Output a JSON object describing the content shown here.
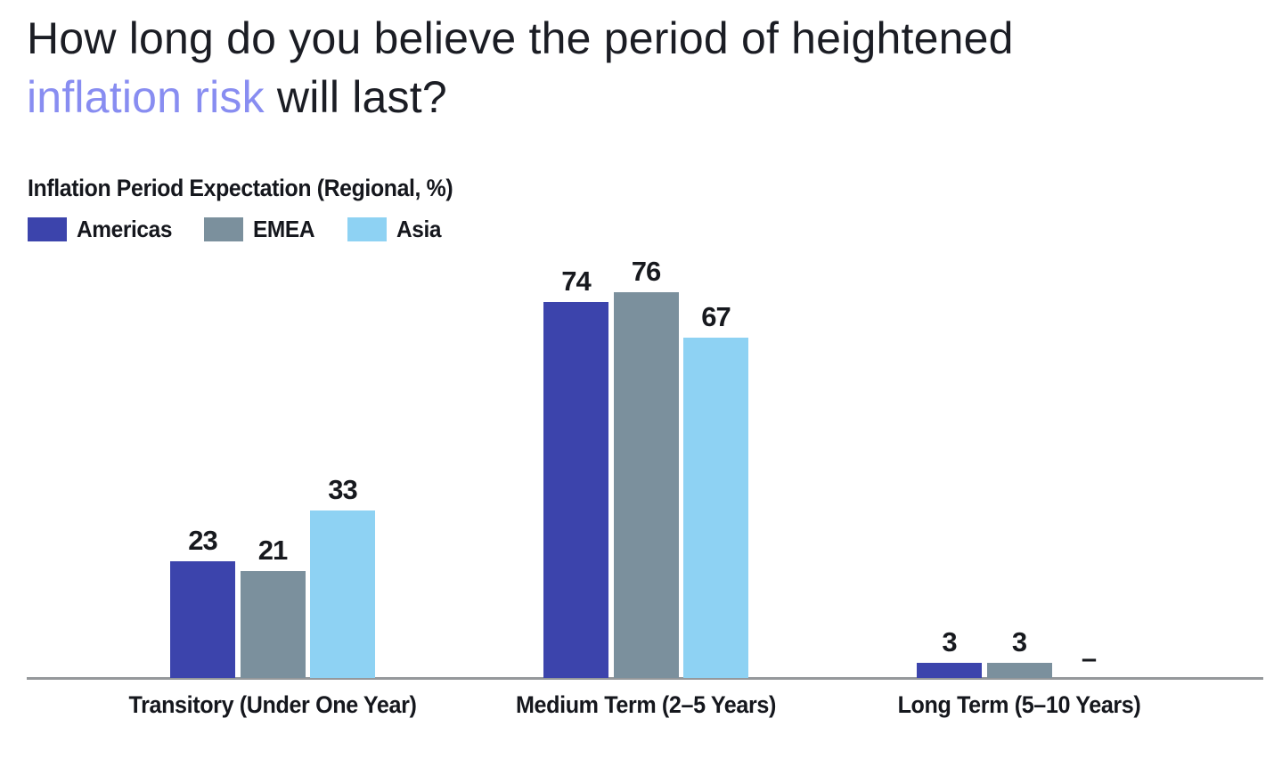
{
  "title": {
    "line1": "How long do you believe the period of heightened",
    "accent": "inflation risk",
    "rest": " will last?"
  },
  "chart_data": {
    "type": "bar",
    "title": "Inflation Period Expectation (Regional, %)",
    "categories": [
      "Transitory (Under One Year)",
      "Medium Term (2–5 Years)",
      "Long Term (5–10 Years)"
    ],
    "series": [
      {
        "name": "Americas",
        "color": "#3c44ac",
        "values": [
          23,
          74,
          3
        ]
      },
      {
        "name": "EMEA",
        "color": "#7b909d",
        "values": [
          21,
          76,
          3
        ]
      },
      {
        "name": "Asia",
        "color": "#8ed2f3",
        "values": [
          33,
          67,
          null
        ]
      }
    ],
    "null_marker": "–",
    "ylim": [
      0,
      100
    ],
    "grid": false,
    "legend_position": "top-left",
    "value_labels": true,
    "xlabel": "",
    "ylabel": ""
  },
  "colors": {
    "title_text": "#1b1d24",
    "accent": "#888df1",
    "axis": "#95989b",
    "label_text": "#15171d"
  }
}
